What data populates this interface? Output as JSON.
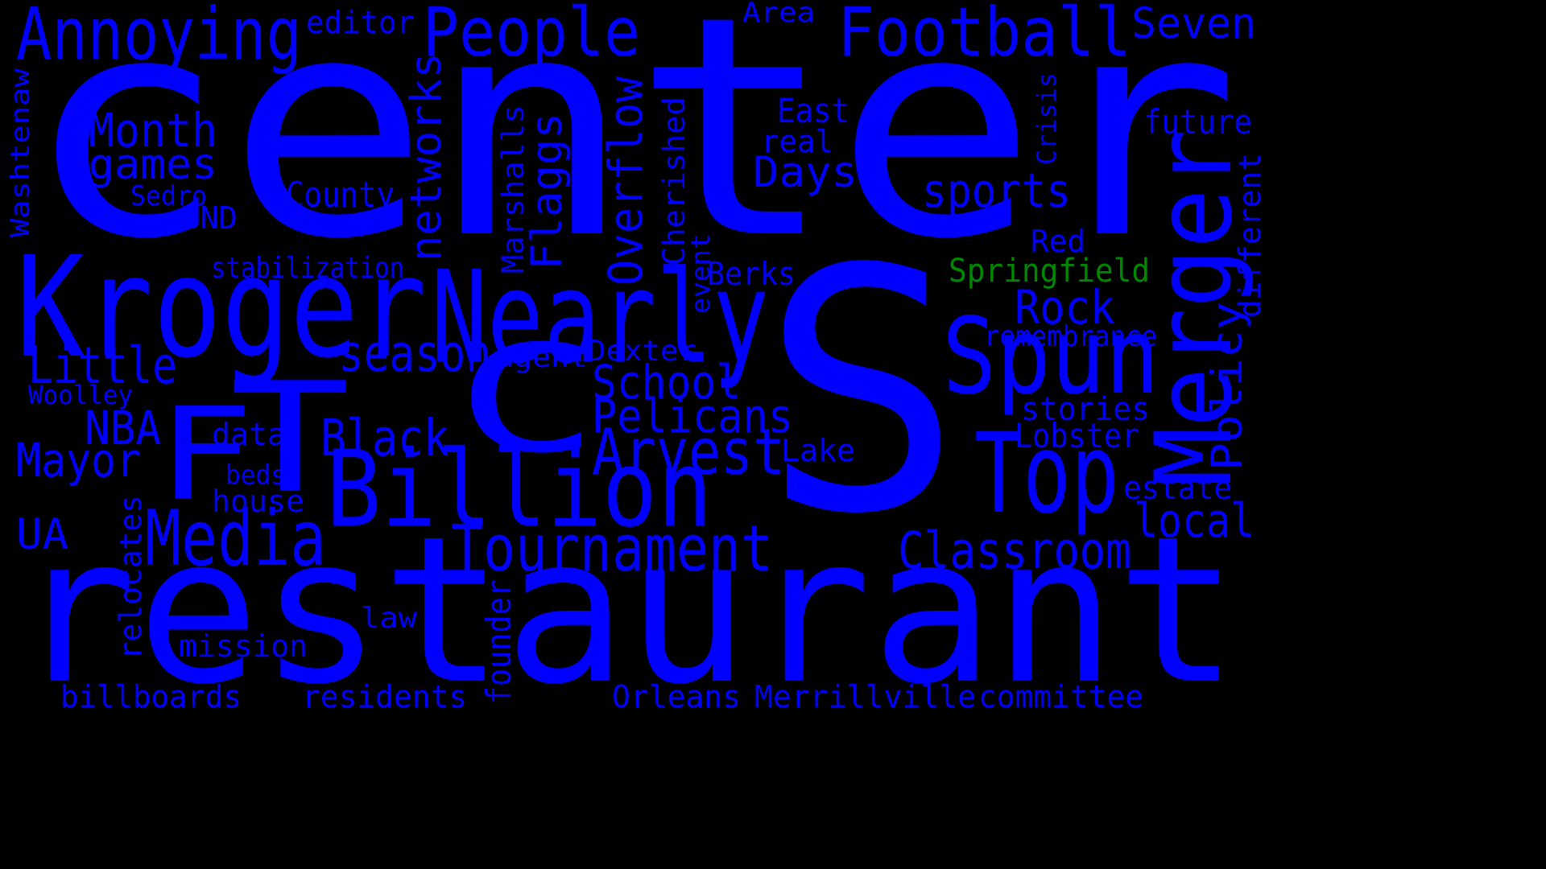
{
  "colors": {
    "background": "#000000",
    "word_default": "#0000ff",
    "word_highlight": "#008800"
  },
  "words": [
    {
      "id": "w0",
      "text": "center"
    },
    {
      "id": "w1",
      "text": "S"
    },
    {
      "id": "w2",
      "text": "restaurant"
    },
    {
      "id": "w3",
      "text": "C"
    },
    {
      "id": "w4",
      "text": "T"
    },
    {
      "id": "w5",
      "text": "F"
    },
    {
      "id": "w6",
      "text": "Kroger"
    },
    {
      "id": "w7",
      "text": "Nearly"
    },
    {
      "id": "w8",
      "text": "Billion"
    },
    {
      "id": "w9",
      "text": "Spun"
    },
    {
      "id": "w10",
      "text": "Merger"
    },
    {
      "id": "w11",
      "text": "Top"
    },
    {
      "id": "w12",
      "text": "Football"
    },
    {
      "id": "w13",
      "text": "Annoying"
    },
    {
      "id": "w14",
      "text": "People"
    },
    {
      "id": "w15",
      "text": "Media"
    },
    {
      "id": "w16",
      "text": "Tournament"
    },
    {
      "id": "w17",
      "text": "Arvest"
    },
    {
      "id": "w18",
      "text": "networks"
    },
    {
      "id": "w19",
      "text": "Overflow"
    },
    {
      "id": "w20",
      "text": "Flaggs"
    },
    {
      "id": "w21",
      "text": "Classroom"
    },
    {
      "id": "w22",
      "text": "Pelicans"
    },
    {
      "id": "w23",
      "text": "School"
    },
    {
      "id": "w24",
      "text": "season"
    },
    {
      "id": "w25",
      "text": "Black"
    },
    {
      "id": "w26",
      "text": "Little"
    },
    {
      "id": "w27",
      "text": "Month"
    },
    {
      "id": "w28",
      "text": "games"
    },
    {
      "id": "w29",
      "text": "Mayor"
    },
    {
      "id": "w30",
      "text": "NBA"
    },
    {
      "id": "w31",
      "text": "Rock"
    },
    {
      "id": "w32",
      "text": "sports"
    },
    {
      "id": "w33",
      "text": "Days"
    },
    {
      "id": "w34",
      "text": "Policy"
    },
    {
      "id": "w35",
      "text": "local"
    },
    {
      "id": "w36",
      "text": "Seven"
    },
    {
      "id": "w37",
      "text": "UA"
    },
    {
      "id": "w38",
      "text": "Marshalls"
    },
    {
      "id": "w39",
      "text": "Cherished"
    },
    {
      "id": "w40",
      "text": "County"
    },
    {
      "id": "w41",
      "text": "future"
    },
    {
      "id": "w42",
      "text": "East"
    },
    {
      "id": "w43",
      "text": "different"
    },
    {
      "id": "w44",
      "text": "Lobster"
    },
    {
      "id": "w45",
      "text": "stories"
    },
    {
      "id": "w46",
      "text": "estate"
    },
    {
      "id": "w47",
      "text": "Springfield"
    },
    {
      "id": "w48",
      "text": "Berks"
    },
    {
      "id": "w49",
      "text": "Washtenaw"
    },
    {
      "id": "w50",
      "text": "editor"
    },
    {
      "id": "w51",
      "text": "Area"
    },
    {
      "id": "w52",
      "text": "real"
    },
    {
      "id": "w53",
      "text": "Red"
    },
    {
      "id": "w54",
      "text": "Crisis"
    },
    {
      "id": "w55",
      "text": "BND"
    },
    {
      "id": "w56",
      "text": "Sedro"
    },
    {
      "id": "w57",
      "text": "stabilization"
    },
    {
      "id": "w58",
      "text": "event"
    },
    {
      "id": "w59",
      "text": "remembrance"
    },
    {
      "id": "w60",
      "text": "agent"
    },
    {
      "id": "w61",
      "text": "Dexter"
    },
    {
      "id": "w62",
      "text": "Woolley"
    },
    {
      "id": "w63",
      "text": "data"
    },
    {
      "id": "w64",
      "text": "Lake"
    },
    {
      "id": "w65",
      "text": "beds"
    },
    {
      "id": "w66",
      "text": "house"
    },
    {
      "id": "w67",
      "text": "relocates"
    },
    {
      "id": "w68",
      "text": "law"
    },
    {
      "id": "w69",
      "text": "mission"
    },
    {
      "id": "w70",
      "text": "founder"
    },
    {
      "id": "w71",
      "text": "billboards"
    },
    {
      "id": "w72",
      "text": "residents"
    },
    {
      "id": "w73",
      "text": "Orleans"
    },
    {
      "id": "w74",
      "text": "Merrillville"
    },
    {
      "id": "w75",
      "text": "committee"
    }
  ]
}
